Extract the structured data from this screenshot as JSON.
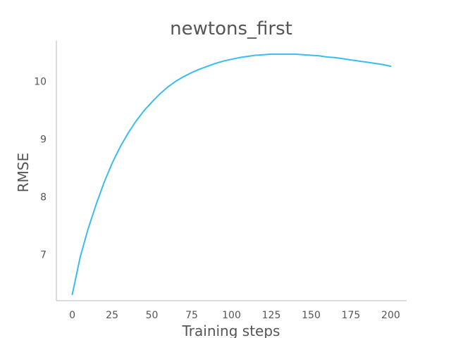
{
  "chart_data": {
    "type": "line",
    "title": "newtons_first",
    "xlabel": "Training steps",
    "ylabel": "RMSE",
    "xlim": [
      -10,
      210
    ],
    "ylim": [
      6.2,
      10.7
    ],
    "xticks": [
      0,
      25,
      50,
      75,
      100,
      125,
      150,
      175,
      200
    ],
    "yticks": [
      7,
      8,
      9,
      10
    ],
    "grid": false,
    "colors": {
      "series": "#3bbcf1",
      "axis": "#c8c8c8",
      "text": "#555555"
    },
    "series": [
      {
        "x": [
          0,
          5,
          10,
          15,
          20,
          25,
          30,
          35,
          40,
          45,
          50,
          55,
          60,
          65,
          70,
          75,
          80,
          85,
          90,
          95,
          100,
          105,
          110,
          115,
          120,
          125,
          130,
          135,
          140,
          145,
          150,
          155,
          160,
          165,
          170,
          175,
          180,
          185,
          190,
          195,
          200
        ],
        "values": [
          6.31,
          6.96,
          7.45,
          7.87,
          8.25,
          8.58,
          8.86,
          9.1,
          9.31,
          9.49,
          9.64,
          9.78,
          9.9,
          10.0,
          10.08,
          10.15,
          10.21,
          10.26,
          10.31,
          10.35,
          10.38,
          10.41,
          10.43,
          10.45,
          10.46,
          10.47,
          10.47,
          10.47,
          10.47,
          10.46,
          10.45,
          10.44,
          10.42,
          10.41,
          10.39,
          10.37,
          10.35,
          10.33,
          10.31,
          10.29,
          10.26
        ]
      }
    ]
  }
}
